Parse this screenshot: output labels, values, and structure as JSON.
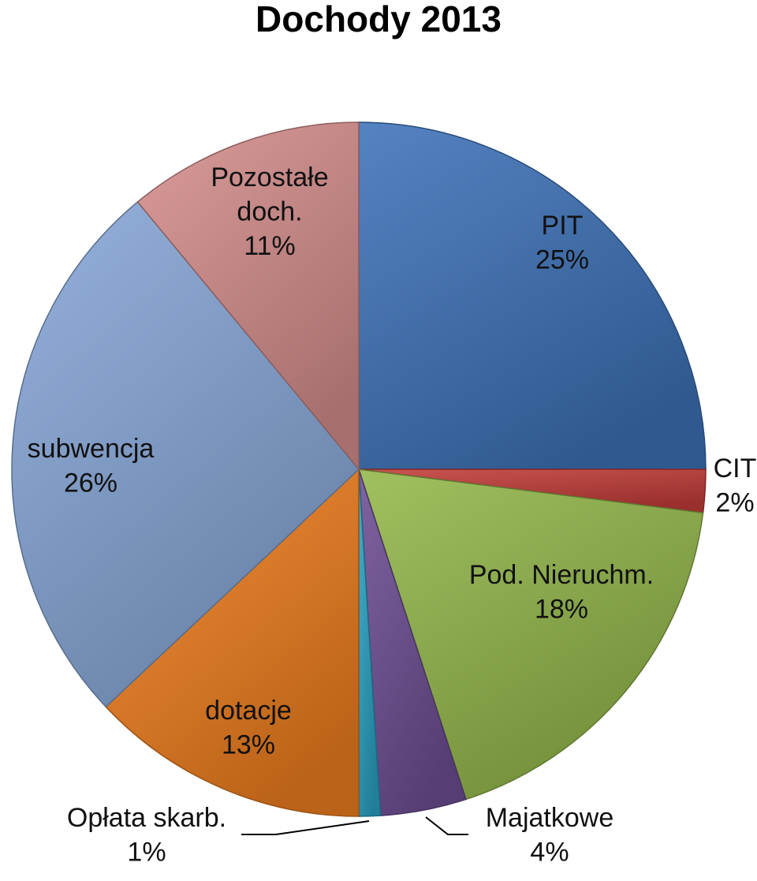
{
  "chart_data": {
    "type": "pie",
    "title": "Dochody 2013",
    "slices": [
      {
        "label": "PIT",
        "percent_label": "25%",
        "value": 25,
        "color": "#3e72b8"
      },
      {
        "label": "CIT",
        "percent_label": "2%",
        "value": 2,
        "color": "#c43d3a"
      },
      {
        "label": "Pod. Nieruchm.",
        "percent_label": "18%",
        "value": 18,
        "color": "#93b74a"
      },
      {
        "label": "Majatkowe",
        "percent_label": "4%",
        "value": 4,
        "color": "#6e4e94"
      },
      {
        "label": "Opłata skarb.",
        "percent_label": "1%",
        "value": 1,
        "color": "#2aa3c4"
      },
      {
        "label": "dotacje",
        "percent_label": "13%",
        "value": 13,
        "color": "#f07f1f"
      },
      {
        "label": "subwencja",
        "percent_label": "26%",
        "value": 26,
        "color": "#86a7d8"
      },
      {
        "label": "Pozostałe doch.",
        "percent_label": "11%",
        "value": 11,
        "color": "#d68f8d"
      }
    ],
    "start_angle": "12 o'clock",
    "direction": "clockwise",
    "legend": "none"
  }
}
